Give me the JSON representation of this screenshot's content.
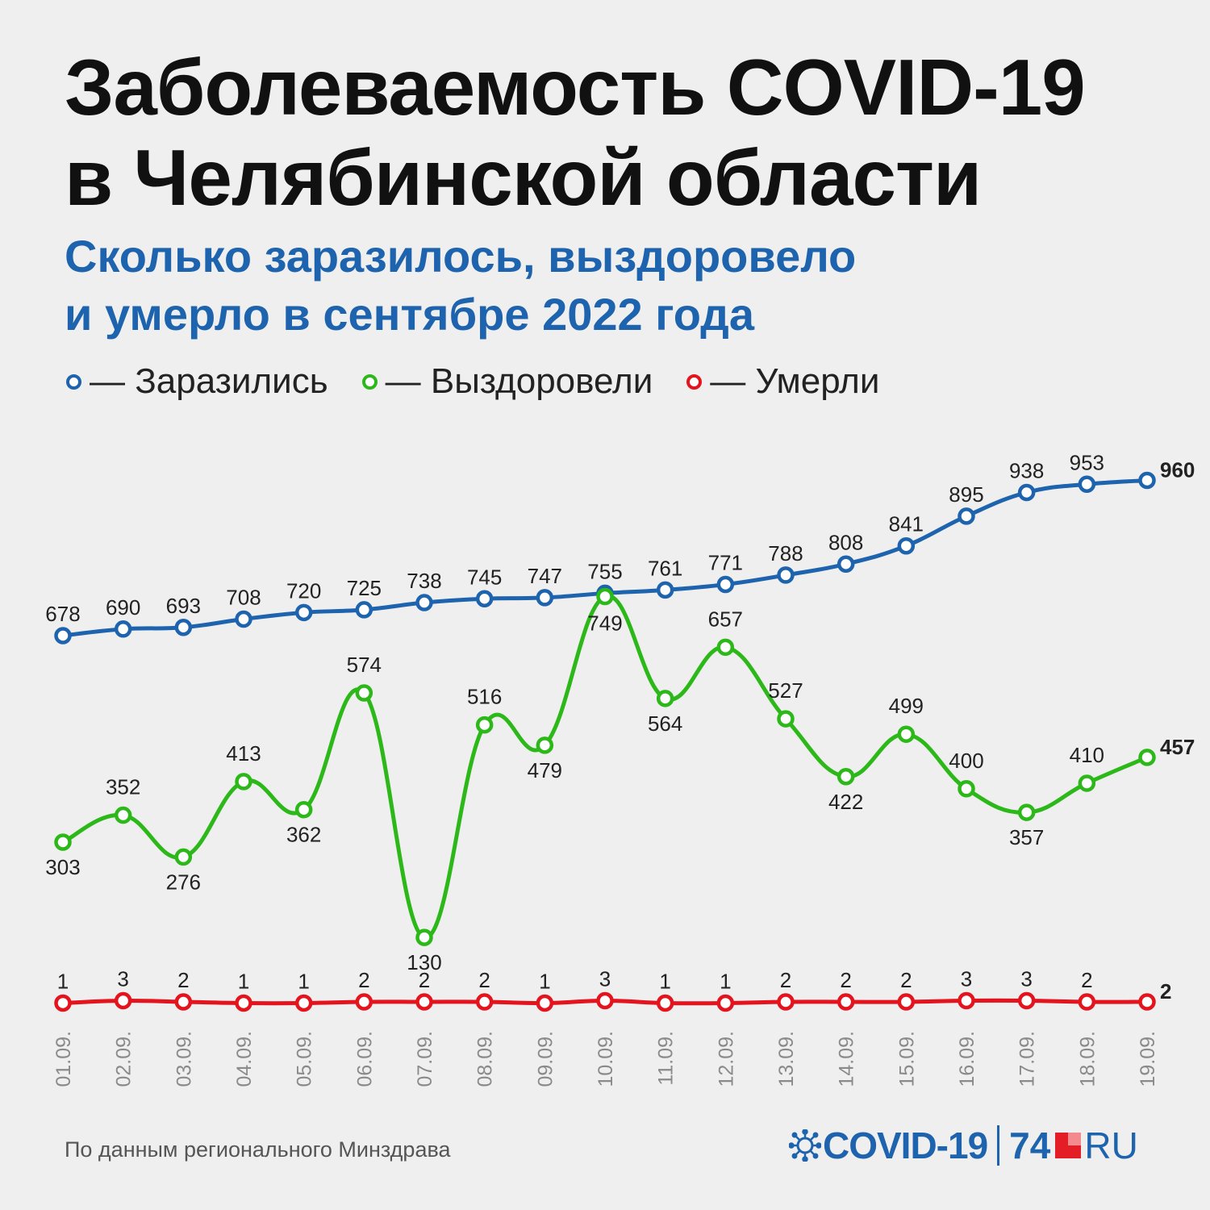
{
  "title": {
    "line1": "Заболеваемость COVID-19",
    "line2": "в Челябинской области"
  },
  "subtitle": {
    "line1": "Сколько заразилось, выздоровело",
    "line2": "и умерло в сентябре 2022 года"
  },
  "legend": [
    {
      "label": "— Заразились",
      "color": "#1e63ad"
    },
    {
      "label": "— Выздоровели",
      "color": "#2db81a"
    },
    {
      "label": "— Умерли",
      "color": "#e4141e"
    }
  ],
  "source": "По данным регионального Минздрава",
  "logo": {
    "covid": "COVID-19",
    "num": "74",
    "ru": "RU"
  },
  "chart_data": {
    "type": "line",
    "categories": [
      "01.09.",
      "02.09.",
      "03.09.",
      "04.09.",
      "05.09.",
      "06.09.",
      "07.09.",
      "08.09.",
      "09.09.",
      "10.09.",
      "11.09.",
      "12.09.",
      "13.09.",
      "14.09.",
      "15.09.",
      "16.09.",
      "17.09.",
      "18.09.",
      "19.09."
    ],
    "series": [
      {
        "name": "Заразились",
        "color": "#1e63ad",
        "values": [
          678,
          690,
          693,
          708,
          720,
          725,
          738,
          745,
          747,
          755,
          761,
          771,
          788,
          808,
          841,
          895,
          938,
          953,
          960
        ]
      },
      {
        "name": "Выздоровели",
        "color": "#2db81a",
        "values": [
          303,
          352,
          276,
          413,
          362,
          574,
          130,
          516,
          479,
          749,
          564,
          657,
          527,
          422,
          499,
          400,
          357,
          410,
          457
        ]
      },
      {
        "name": "Умерли",
        "color": "#e4141e",
        "values": [
          1,
          3,
          2,
          1,
          1,
          2,
          2,
          2,
          1,
          3,
          1,
          1,
          2,
          2,
          2,
          3,
          3,
          2,
          2
        ]
      }
    ],
    "grid": false,
    "legend_position": "top-left"
  }
}
